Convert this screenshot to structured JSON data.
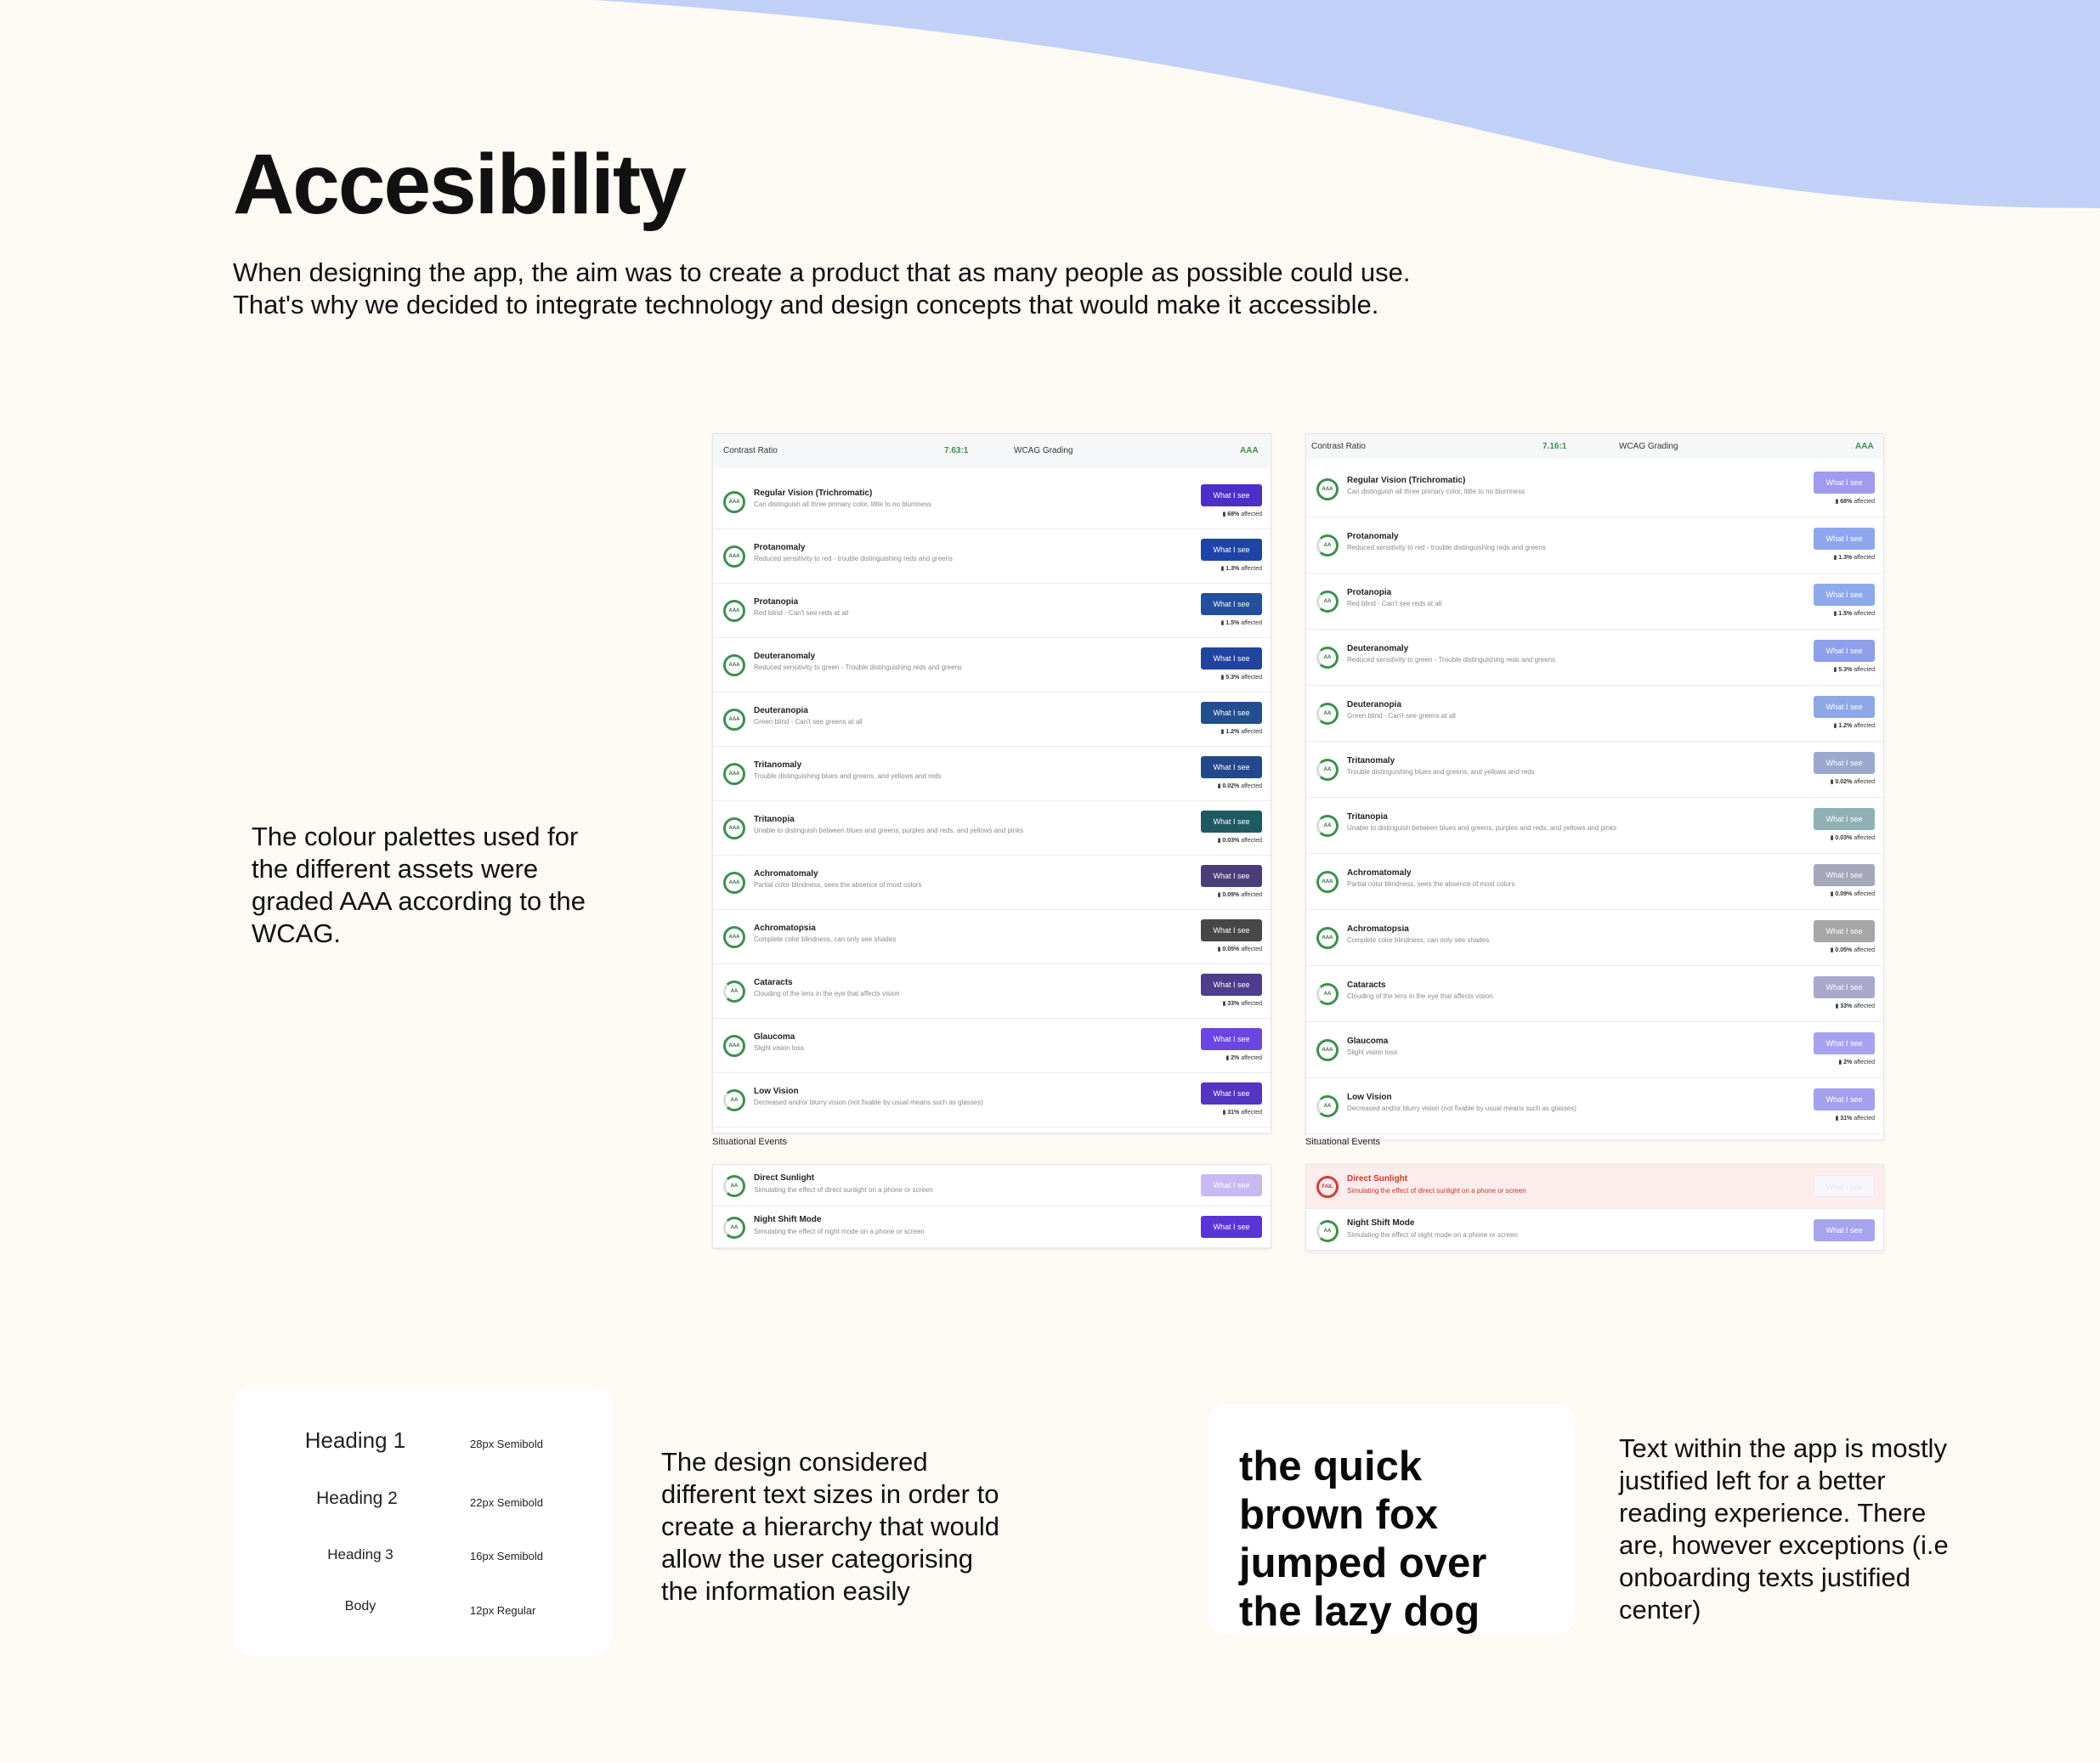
{
  "title": "Accesibility",
  "intro": [
    "When designing the app, the aim was to create a product that as many people as possible could use.",
    "That's why we decided to integrate technology and design concepts that would make it accessible."
  ],
  "side_text": "The colour palettes used for the different assets were graded AAA according to the WCAG.",
  "colors": {
    "background": "#fdf9f3",
    "wave": "#c0d0f7",
    "grade_green": "#3f8f4f",
    "fail_red": "#d23b3b"
  },
  "panels": [
    {
      "header": {
        "contrast_label": "Contrast Ratio",
        "ratio": "7.63:1",
        "grading_label": "WCAG Grading",
        "grade": "AAA"
      },
      "rows": [
        {
          "title": "Regular Vision (Trichromatic)",
          "desc": "Can distinguish all three primary color, little to no blurriness",
          "grade": "AAA",
          "affected": "68%",
          "button": "What I see",
          "color": "#4b2fc8"
        },
        {
          "title": "Protanomaly",
          "desc": "Reduced sensitivity to red - trouble distinguishing reds and greens",
          "grade": "AAA",
          "affected": "1.3%",
          "button": "What I see",
          "color": "#1f44a8"
        },
        {
          "title": "Protanopia",
          "desc": "Red blind - Can't see reds at all",
          "grade": "AAA",
          "affected": "1.5%",
          "button": "What I see",
          "color": "#234f9c"
        },
        {
          "title": "Deuteranomaly",
          "desc": "Reduced sensitivity to green - Trouble distinguishing reds and greens",
          "grade": "AAA",
          "affected": "5.3%",
          "button": "What I see",
          "color": "#21459f"
        },
        {
          "title": "Deuteranopia",
          "desc": "Green blind - Can't see greens at all",
          "grade": "AAA",
          "affected": "1.2%",
          "button": "What I see",
          "color": "#234f8f"
        },
        {
          "title": "Tritanomaly",
          "desc": "Trouble distinguishing blues and greens, and yellows and reds",
          "grade": "AAA",
          "affected": "0.02%",
          "button": "What I see",
          "color": "#24488a"
        },
        {
          "title": "Tritanopia",
          "desc": "Unable to distinguish between blues and greens, purples and reds, and yellows and pinks",
          "grade": "AAA",
          "affected": "0.03%",
          "button": "What I see",
          "color": "#1f5a63"
        },
        {
          "title": "Achromatomaly",
          "desc": "Partial color blindness, sees the absence of most colors",
          "grade": "AAA",
          "affected": "0.09%",
          "button": "What I see",
          "color": "#4a3e78"
        },
        {
          "title": "Achromatopsia",
          "desc": "Complete color blindness, can only see shades",
          "grade": "AAA",
          "affected": "0.05%",
          "button": "What I see",
          "color": "#474747"
        },
        {
          "title": "Cataracts",
          "desc": "Clouding of the lens in the eye that affects vision",
          "grade": "AA",
          "affected": "33%",
          "button": "What I see",
          "color": "#4d3d8c"
        },
        {
          "title": "Glaucoma",
          "desc": "Slight vision loss",
          "grade": "AAA",
          "affected": "2%",
          "button": "What I see",
          "color": "#6d45e0"
        },
        {
          "title": "Low Vision",
          "desc": "Decreased and/or blurry vision (not fixable by usual means such as glasses)",
          "grade": "AA",
          "affected": "31%",
          "button": "What I see",
          "color": "#5335c4"
        }
      ],
      "situational_label": "Situational Events",
      "events": [
        {
          "title": "Direct Sunlight",
          "desc": "Simulating the effect of direct sunlight on a phone or screen",
          "grade": "AA",
          "button": "What I see",
          "color": "#c9b9f2",
          "fail": false
        },
        {
          "title": "Night Shift Mode",
          "desc": "Simulating the effect of night mode on a phone or screen",
          "grade": "AA",
          "button": "What I see",
          "color": "#5a34d6",
          "fail": false
        }
      ]
    },
    {
      "header": {
        "contrast_label": "Contrast Ratio",
        "ratio": "7.16:1",
        "grading_label": "WCAG Grading",
        "grade": "AAA"
      },
      "rows": [
        {
          "title": "Regular Vision (Trichromatic)",
          "desc": "Can distinguish all three primary color, little to no blurriness",
          "grade": "AAA",
          "affected": "68%",
          "button": "What I see",
          "color": "#a09af0"
        },
        {
          "title": "Protanomaly",
          "desc": "Reduced sensitivity to red - trouble distinguishing reds and greens",
          "grade": "AA",
          "affected": "1.3%",
          "button": "What I see",
          "color": "#8fa6ee"
        },
        {
          "title": "Protanopia",
          "desc": "Red blind - Can't see reds at all",
          "grade": "AA",
          "affected": "1.5%",
          "button": "What I see",
          "color": "#8ea9ec"
        },
        {
          "title": "Deuteranomaly",
          "desc": "Reduced sensitivity to green - Trouble distinguishing reds and greens",
          "grade": "AA",
          "affected": "5.3%",
          "button": "What I see",
          "color": "#8f9fe9"
        },
        {
          "title": "Deuteranopia",
          "desc": "Green blind - Can't see greens at all",
          "grade": "AA",
          "affected": "1.2%",
          "button": "What I see",
          "color": "#8ea8e6"
        },
        {
          "title": "Tritanomaly",
          "desc": "Trouble distinguishing blues and greens, and yellows and reds",
          "grade": "AA",
          "affected": "0.02%",
          "button": "What I see",
          "color": "#9aa9cd"
        },
        {
          "title": "Tritanopia",
          "desc": "Unable to distinguish between blues and greens, purples and reds, and yellows and pinks",
          "grade": "AA",
          "affected": "0.03%",
          "button": "What I see",
          "color": "#8fb1b6"
        },
        {
          "title": "Achromatomaly",
          "desc": "Partial color blindness, sees the absence of most colors",
          "grade": "AAA",
          "affected": "0.09%",
          "button": "What I see",
          "color": "#a7a7bb"
        },
        {
          "title": "Achromatopsia",
          "desc": "Complete color blindness, can only see shades",
          "grade": "AAA",
          "affected": "0.05%",
          "button": "What I see",
          "color": "#a6a6a6"
        },
        {
          "title": "Cataracts",
          "desc": "Clouding of the lens in the eye that affects vision",
          "grade": "AA",
          "affected": "33%",
          "button": "What I see",
          "color": "#a9a8cc"
        },
        {
          "title": "Glaucoma",
          "desc": "Slight vision loss",
          "grade": "AAA",
          "affected": "2%",
          "button": "What I see",
          "color": "#a7a2f0"
        },
        {
          "title": "Low Vision",
          "desc": "Decreased and/or blurry vision (not fixable by usual means such as glasses)",
          "grade": "AA",
          "affected": "31%",
          "button": "What I see",
          "color": "#a3a0ee"
        }
      ],
      "situational_label": "Situational Events",
      "events": [
        {
          "title": "Direct Sunlight",
          "desc": "Simulating the effect of direct sunlight on a phone or screen",
          "grade": "FAIL",
          "button": "What I see",
          "color": "#f7f6fb",
          "fail": true
        },
        {
          "title": "Night Shift Mode",
          "desc": "Simulating the effect of night mode on a phone or screen",
          "grade": "AA",
          "button": "What I see",
          "color": "#a8a3ee",
          "fail": false
        }
      ]
    }
  ],
  "typography": {
    "rows": [
      {
        "name": "Heading 1",
        "spec": "28px Semibold"
      },
      {
        "name": "Heading 2",
        "spec": "22px Semibold"
      },
      {
        "name": "Heading 3",
        "spec": "16px Semibold"
      },
      {
        "name": "Body",
        "spec": "12px Regular"
      }
    ],
    "description": "The design considered different text sizes in order to create a hierarchy that would allow the user categorising the information easily"
  },
  "sample": {
    "text": "the quick brown fox jumped over the lazy dog",
    "description": "Text within the app is mostly justified left for a better reading experience. There are, however exceptions (i.e onboarding texts justified center)"
  }
}
